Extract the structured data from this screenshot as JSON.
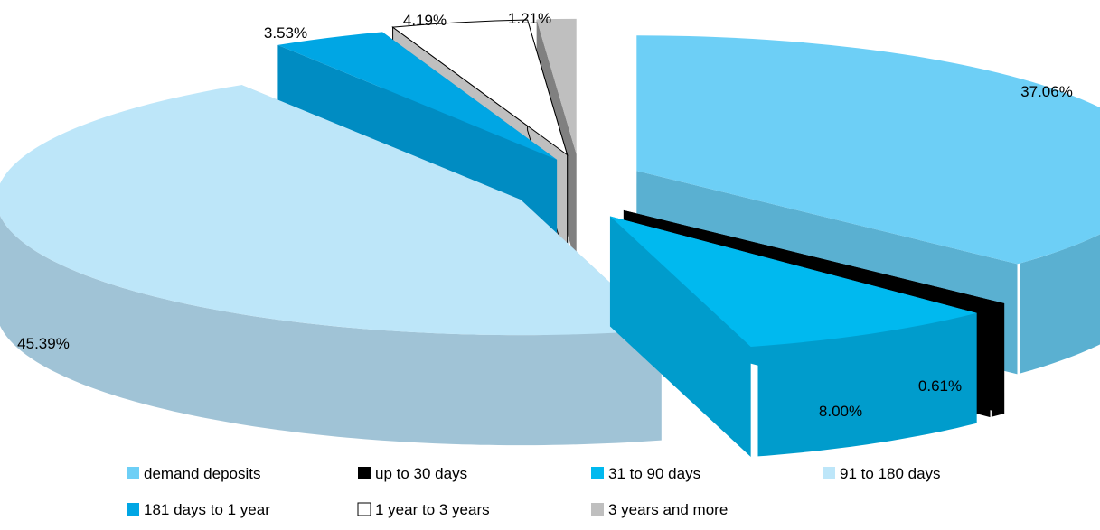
{
  "chart_data": {
    "type": "pie",
    "title": "",
    "categories": [
      "demand deposits",
      "up to 30 days",
      "31 to 90 days",
      "91 to 180 days",
      "181 days to 1 year",
      "1 year to 3 years",
      "3 years and more"
    ],
    "values": [
      37.06,
      0.61,
      8.0,
      45.39,
      3.53,
      4.19,
      1.21
    ],
    "data_labels": [
      "37.06%",
      "0.61%",
      "8.00%",
      "45.39%",
      "3.53%",
      "4.19%",
      "1.21%"
    ],
    "colors": {
      "demand deposits": "#6dcff6",
      "up to 30 days": "#000000",
      "31 to 90 days": "#00b9ef",
      "91 to 180 days": "#bde6f9",
      "181 days to 1 year": "#00a6e4",
      "1 year to 3 years": "#ffffff",
      "3 years and more": "#bfbfbf"
    },
    "side_colors": {
      "demand deposits": "#5ab0d1",
      "up to 30 days": "#000000",
      "31 to 90 days": "#009ccc",
      "91 to 180 days": "#a0c3d6",
      "181 days to 1 year": "#008cc2",
      "1 year to 3 years": "#bfbfbf",
      "3 years and more": "#808080"
    },
    "legend_placement": "bottom",
    "exploded": true,
    "three_d": true
  }
}
